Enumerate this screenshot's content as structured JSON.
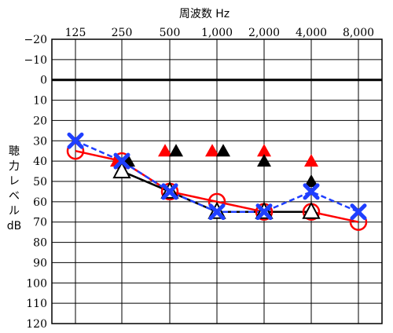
{
  "chart_data": {
    "type": "scatter",
    "title": "周波数 Hz",
    "ylabel": [
      "聴",
      "力",
      "レ",
      "ベ",
      "ル",
      "dB"
    ],
    "x_categories": [
      "125",
      "250",
      "500",
      "1,000",
      "2,000",
      "4,000",
      "8,000"
    ],
    "y_ticks": [
      "−20",
      "−10",
      "0",
      "10",
      "20",
      "30",
      "40",
      "50",
      "60",
      "70",
      "80",
      "90",
      "100",
      "110",
      "120"
    ],
    "y_tick_values": [
      -20,
      -10,
      0,
      10,
      20,
      30,
      40,
      50,
      60,
      70,
      80,
      90,
      100,
      110,
      120
    ],
    "ylim": [
      -20,
      120
    ],
    "y_inverted": true,
    "zero_line_emphasized": true,
    "colors": {
      "red": "#ff0000",
      "blue": "#1f3fff",
      "black": "#000000",
      "grid": "#000000"
    },
    "series": [
      {
        "marker": "circle-open",
        "color": "#ff0000",
        "line": "solid",
        "points": [
          [
            "125",
            35
          ],
          [
            "250",
            40
          ],
          [
            "500",
            55
          ],
          [
            "1,000",
            60
          ],
          [
            "2,000",
            65
          ],
          [
            "4,000",
            65
          ],
          [
            "8,000",
            70
          ]
        ]
      },
      {
        "marker": "triangle-open",
        "color": "#000000",
        "line": "solid",
        "points": [
          [
            "250",
            45
          ],
          [
            "500",
            55
          ],
          [
            "1,000",
            65
          ],
          [
            "2,000",
            65
          ],
          [
            "4,000",
            65
          ]
        ]
      },
      {
        "marker": "cross",
        "color": "#1f3fff",
        "line": "dashed",
        "points": [
          [
            "125",
            30
          ],
          [
            "250",
            40
          ],
          [
            "500",
            55
          ],
          [
            "1,000",
            65
          ],
          [
            "2,000",
            65
          ],
          [
            "4,000",
            55
          ],
          [
            "8,000",
            65
          ]
        ]
      },
      {
        "marker": "triangle-filled",
        "color": "#ff0000",
        "line": "none",
        "points": [
          [
            "250",
            40
          ],
          [
            "500",
            35
          ],
          [
            "1,000",
            35
          ],
          [
            "2,000",
            35
          ],
          [
            "4,000",
            40
          ]
        ]
      },
      {
        "marker": "triangle-filled",
        "color": "#000000",
        "line": "none",
        "points": [
          [
            "250",
            40
          ],
          [
            "500",
            35
          ],
          [
            "1,000",
            35
          ],
          [
            "2,000",
            40
          ],
          [
            "4,000",
            50
          ]
        ]
      }
    ]
  }
}
